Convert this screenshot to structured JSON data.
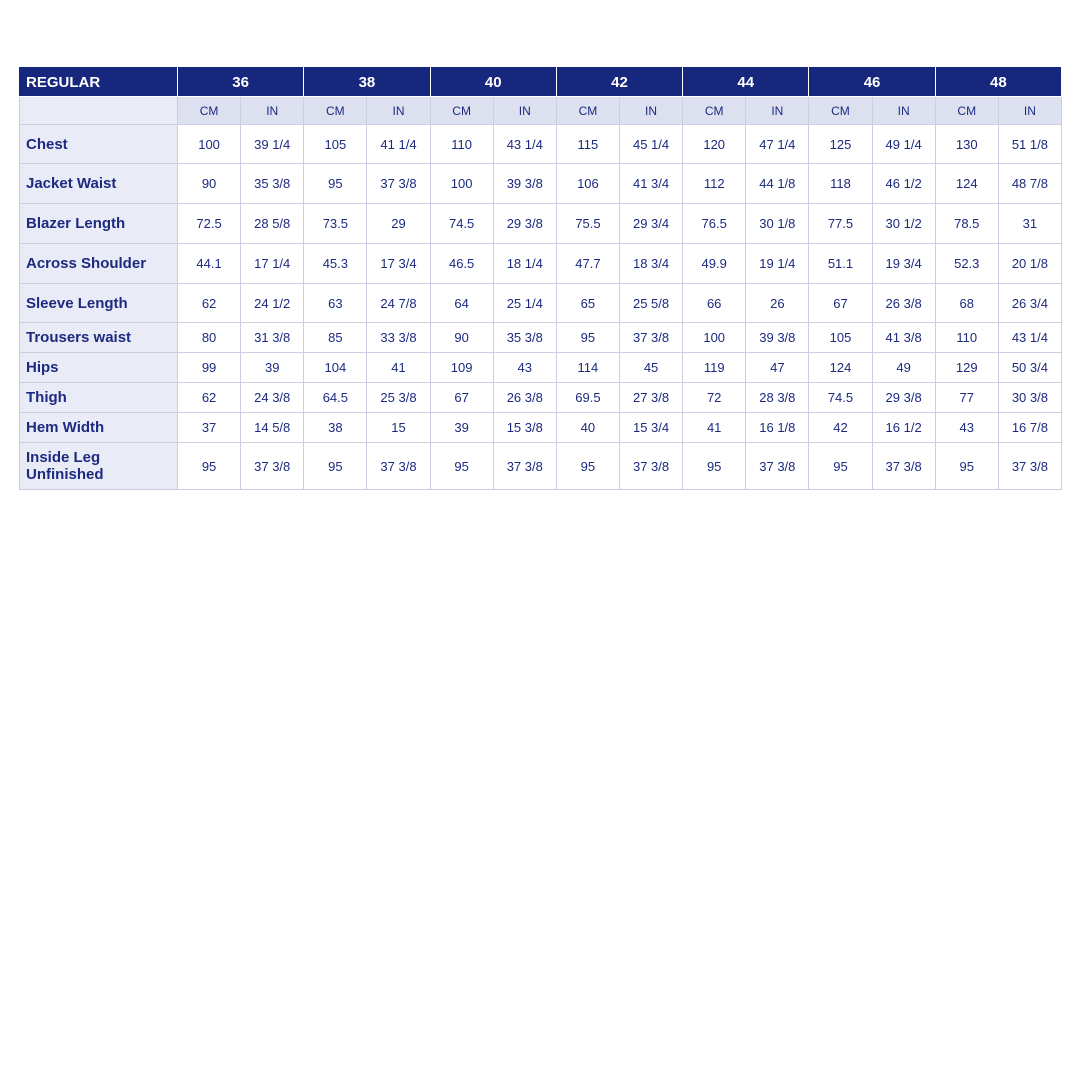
{
  "table": {
    "title": "REGULAR",
    "sizes": [
      "36",
      "38",
      "40",
      "42",
      "44",
      "46",
      "48"
    ],
    "units": [
      "CM",
      "IN",
      "CM",
      "IN",
      "CM",
      "IN",
      "CM",
      "IN",
      "CM",
      "IN",
      "CM",
      "IN",
      "CM",
      "IN"
    ],
    "rows": [
      {
        "label": "Chest",
        "values": [
          "100",
          "39 1/4",
          "105",
          "41 1/4",
          "110",
          "43 1/4",
          "115",
          "45 1/4",
          "120",
          "47 1/4",
          "125",
          "49 1/4",
          "130",
          "51 1/8"
        ]
      },
      {
        "label": "Jacket Waist",
        "values": [
          "90",
          "35 3/8",
          "95",
          "37 3/8",
          "100",
          "39 3/8",
          "106",
          "41 3/4",
          "112",
          "44 1/8",
          "118",
          "46 1/2",
          "124",
          "48 7/8"
        ]
      },
      {
        "label": "Blazer Length",
        "values": [
          "72.5",
          "28 5/8",
          "73.5",
          "29",
          "74.5",
          "29 3/8",
          "75.5",
          "29 3/4",
          "76.5",
          "30 1/8",
          "77.5",
          "30 1/2",
          "78.5",
          "31"
        ]
      },
      {
        "label": "Across Shoulder",
        "values": [
          "44.1",
          "17 1/4",
          "45.3",
          "17 3/4",
          "46.5",
          "18 1/4",
          "47.7",
          "18 3/4",
          "49.9",
          "19 1/4",
          "51.1",
          "19 3/4",
          "52.3",
          "20 1/8"
        ]
      },
      {
        "label": "Sleeve Length",
        "values": [
          "62",
          "24 1/2",
          "63",
          "24 7/8",
          "64",
          "25 1/4",
          "65",
          "25 5/8",
          "66",
          "26",
          "67",
          "26 3/8",
          "68",
          "26 3/4"
        ]
      },
      {
        "label": "Trousers waist",
        "values": [
          "80",
          "31 3/8",
          "85",
          "33 3/8",
          "90",
          "35 3/8",
          "95",
          "37 3/8",
          "100",
          "39 3/8",
          "105",
          "41 3/8",
          "110",
          "43 1/4"
        ]
      },
      {
        "label": "Hips",
        "values": [
          "99",
          "39",
          "104",
          "41",
          "109",
          "43",
          "114",
          "45",
          "119",
          "47",
          "124",
          "49",
          "129",
          "50 3/4"
        ]
      },
      {
        "label": "Thigh",
        "values": [
          "62",
          "24 3/8",
          "64.5",
          "25 3/8",
          "67",
          "26 3/8",
          "69.5",
          "27 3/8",
          "72",
          "28 3/8",
          "74.5",
          "29 3/8",
          "77",
          "30 3/8"
        ]
      },
      {
        "label": "Hem Width",
        "values": [
          "37",
          "14 5/8",
          "38",
          "15",
          "39",
          "15 3/8",
          "40",
          "15 3/4",
          "41",
          "16 1/8",
          "42",
          "16 1/2",
          "43",
          "16 7/8"
        ]
      },
      {
        "label": "Inside Leg Unfinished",
        "values": [
          "95",
          "37 3/8",
          "95",
          "37 3/8",
          "95",
          "37 3/8",
          "95",
          "37 3/8",
          "95",
          "37 3/8",
          "95",
          "37 3/8",
          "95",
          "37 3/8"
        ]
      }
    ]
  }
}
